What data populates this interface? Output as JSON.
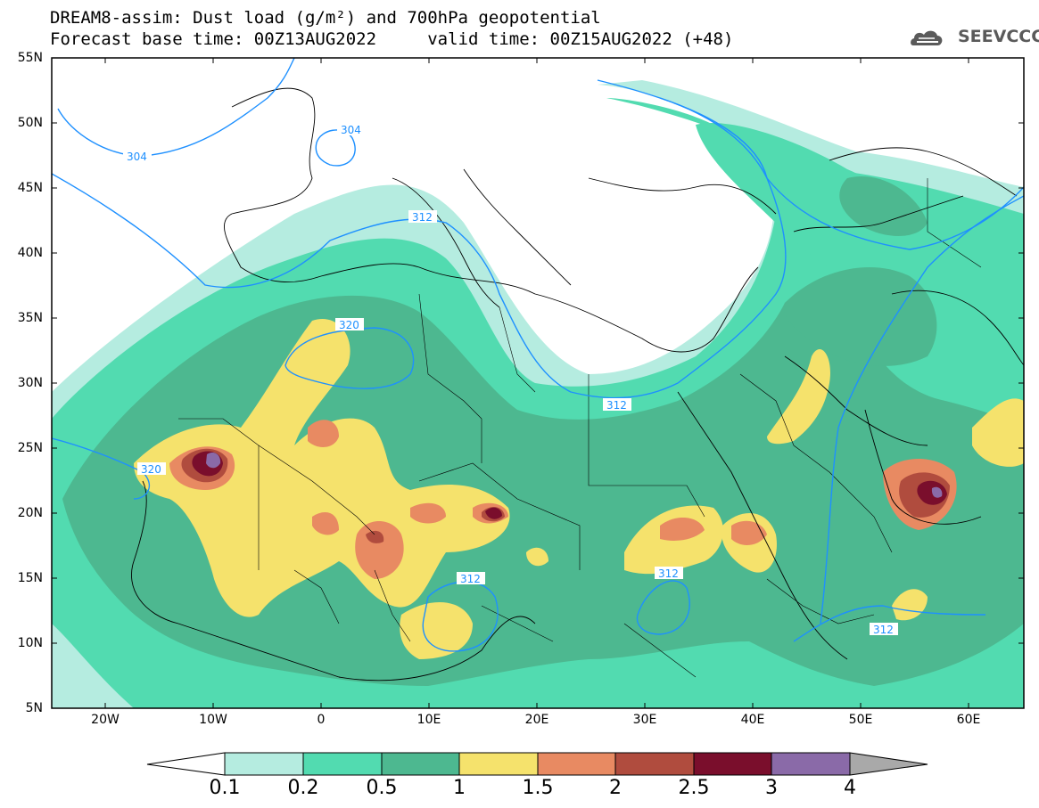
{
  "header": {
    "line1": "DREAM8-assim: Dust load (g/m²) and 700hPa geopotential",
    "line2": "Forecast base time: 00Z13AUG2022     valid time: 00Z15AUG2022 (+48)"
  },
  "logo": {
    "text": "SEEVCCC",
    "icon": "cloud-icon"
  },
  "axes": {
    "lat_labels": [
      "55N",
      "50N",
      "45N",
      "40N",
      "35N",
      "30N",
      "25N",
      "20N",
      "15N",
      "10N",
      "5N"
    ],
    "lon_labels": [
      "20W",
      "10W",
      "0",
      "10E",
      "20E",
      "30E",
      "40E",
      "50E",
      "60E"
    ]
  },
  "colorbar": {
    "labels": [
      "0.1",
      "0.2",
      "0.5",
      "1",
      "1.5",
      "2",
      "2.5",
      "3",
      "4"
    ],
    "colors": [
      "#ffffff",
      "#b5ece0",
      "#52dbb0",
      "#4db890",
      "#f5e26c",
      "#e88a62",
      "#b04c3e",
      "#7a0e2c",
      "#8a6aa8",
      "#a9a9a9"
    ]
  },
  "contours": {
    "labels": [
      "304",
      "304",
      "312",
      "320",
      "312",
      "320",
      "312",
      "312",
      "312"
    ],
    "color": "#1e90ff"
  }
}
